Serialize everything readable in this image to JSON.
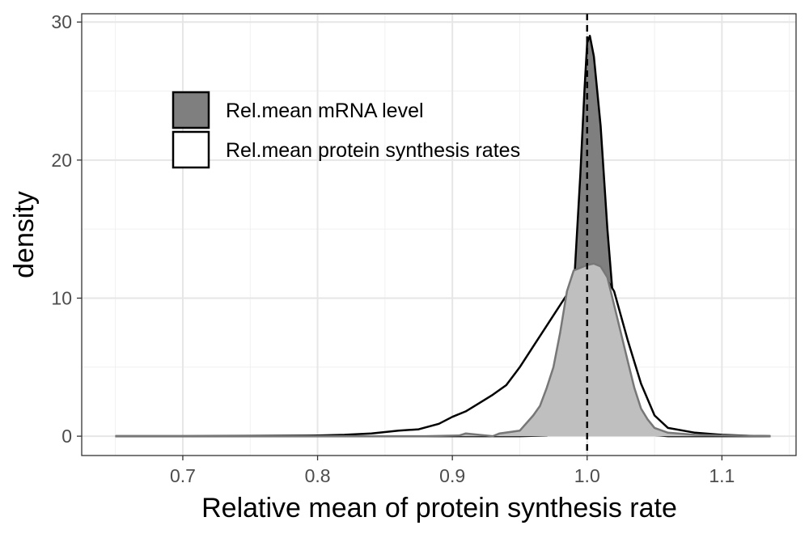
{
  "chart_data": {
    "type": "area",
    "xlabel": "Relative mean of protein synthesis rate",
    "ylabel": "density",
    "xlim": [
      0.625,
      1.155
    ],
    "ylim": [
      -1.4,
      30.6
    ],
    "x_ticks": [
      0.7,
      0.8,
      0.9,
      1.0,
      1.1
    ],
    "x_tick_labels": [
      "0.7",
      "0.8",
      "0.9",
      "1.0",
      "1.1"
    ],
    "y_ticks": [
      0,
      10,
      20,
      30
    ],
    "y_tick_labels": [
      "0",
      "10",
      "20",
      "30"
    ],
    "grid": true,
    "legend_placement": "top-left",
    "reference_line_x": 1.0,
    "series": [
      {
        "name": "Rel.mean mRNA level",
        "fill": "#7f7f7f",
        "stroke": "#000000",
        "points": [
          [
            0.65,
            0
          ],
          [
            0.8,
            0
          ],
          [
            0.9,
            0
          ],
          [
            0.95,
            0
          ],
          [
            0.97,
            0.05
          ],
          [
            0.975,
            0.3
          ],
          [
            0.98,
            1.0
          ],
          [
            0.985,
            3.0
          ],
          [
            0.99,
            10.5
          ],
          [
            0.995,
            19.0
          ],
          [
            0.998,
            25.0
          ],
          [
            1.0,
            28.5
          ],
          [
            1.002,
            29.0
          ],
          [
            1.005,
            27.5
          ],
          [
            1.01,
            22.5
          ],
          [
            1.015,
            15.0
          ],
          [
            1.02,
            9.0
          ],
          [
            1.025,
            4.5
          ],
          [
            1.03,
            2.0
          ],
          [
            1.035,
            0.9
          ],
          [
            1.04,
            0.3
          ],
          [
            1.05,
            0.08
          ],
          [
            1.06,
            0
          ],
          [
            1.136,
            0
          ]
        ]
      },
      {
        "name": "Rel.mean protein synthesis rates",
        "fill": "#ffffff",
        "stroke": "#000000",
        "points": [
          [
            0.65,
            0
          ],
          [
            0.7,
            0
          ],
          [
            0.75,
            0.02
          ],
          [
            0.8,
            0.05
          ],
          [
            0.82,
            0.1
          ],
          [
            0.84,
            0.2
          ],
          [
            0.86,
            0.4
          ],
          [
            0.875,
            0.5
          ],
          [
            0.89,
            0.9
          ],
          [
            0.9,
            1.4
          ],
          [
            0.91,
            1.8
          ],
          [
            0.92,
            2.4
          ],
          [
            0.93,
            3.0
          ],
          [
            0.94,
            3.7
          ],
          [
            0.95,
            5.0
          ],
          [
            0.96,
            6.5
          ],
          [
            0.97,
            8.0
          ],
          [
            0.98,
            9.5
          ],
          [
            0.99,
            11.0
          ],
          [
            1.0,
            12.2
          ],
          [
            1.005,
            12.4
          ],
          [
            1.01,
            12.1
          ],
          [
            1.02,
            10.5
          ],
          [
            1.03,
            7.0
          ],
          [
            1.04,
            3.8
          ],
          [
            1.05,
            1.5
          ],
          [
            1.06,
            0.6
          ],
          [
            1.08,
            0.25
          ],
          [
            1.1,
            0.1
          ],
          [
            1.12,
            0.03
          ],
          [
            1.136,
            0
          ]
        ]
      },
      {
        "name": "",
        "fill": "#bfbfbf",
        "stroke": "#777777",
        "points": [
          [
            0.65,
            0
          ],
          [
            0.88,
            0
          ],
          [
            0.905,
            0.05
          ],
          [
            0.91,
            0.2
          ],
          [
            0.93,
            0
          ],
          [
            0.935,
            0.2
          ],
          [
            0.95,
            0.4
          ],
          [
            0.96,
            1.5
          ],
          [
            0.965,
            2.2
          ],
          [
            0.97,
            3.5
          ],
          [
            0.975,
            5.0
          ],
          [
            0.98,
            7.5
          ],
          [
            0.985,
            10.5
          ],
          [
            0.99,
            12.0
          ],
          [
            1.0,
            12.4
          ],
          [
            1.005,
            12.5
          ],
          [
            1.01,
            12.3
          ],
          [
            1.015,
            11.5
          ],
          [
            1.02,
            9.5
          ],
          [
            1.025,
            7.5
          ],
          [
            1.03,
            5.5
          ],
          [
            1.035,
            3.5
          ],
          [
            1.04,
            2.0
          ],
          [
            1.045,
            1.2
          ],
          [
            1.05,
            0.6
          ],
          [
            1.06,
            0.25
          ],
          [
            1.08,
            0.1
          ],
          [
            1.1,
            0.05
          ],
          [
            1.136,
            0
          ]
        ]
      }
    ]
  }
}
